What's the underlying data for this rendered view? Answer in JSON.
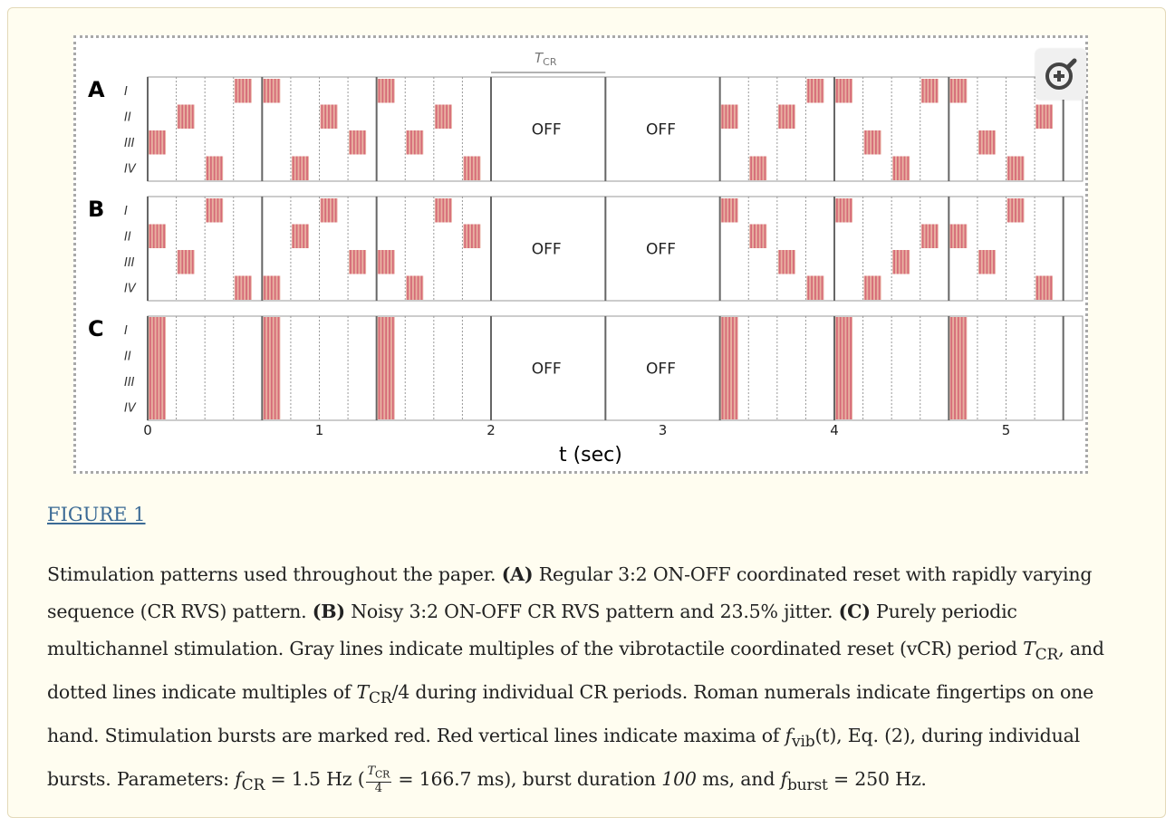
{
  "figure": {
    "tcr_label": "T",
    "tcr_sub": "CR",
    "panels": [
      "A",
      "B",
      "C"
    ],
    "fingers": [
      "I",
      "II",
      "III",
      "IV"
    ],
    "off_label": "OFF",
    "x_ticks": [
      "0",
      "1",
      "2",
      "3",
      "4",
      "5"
    ],
    "x_label": "t (sec)",
    "colors": {
      "burst": "#d66a78",
      "burst_light": "#e8b0a0",
      "grid": "#555555"
    }
  },
  "figure_link": "FIGURE 1",
  "caption": {
    "t1": "Stimulation patterns used throughout the paper. ",
    "b1": "(A)",
    "t2": " Regular 3:2 ON-OFF coordinated reset with rapidly varying sequence (CR RVS) pattern. ",
    "b2": "(B)",
    "t3": " Noisy 3:2 ON-OFF CR RVS pattern and 23.5% jitter. ",
    "b3": "(C)",
    "t4": " Purely periodic multichannel stimulation. Gray lines indicate multiples of the vibrotactile coordinated reset (vCR) period ",
    "tcr": "T",
    "tcr_sub": "CR",
    "t5": ", and dotted lines indicate multiples of ",
    "t6": "/4 during individual CR periods. Roman numerals indicate fingertips on one hand. Stimulation bursts are marked red. Red vertical lines indicate maxima of ",
    "fvib": "f",
    "fvib_sub": "vib",
    "fvib_arg": "(t)",
    "t7": ", Eq. (2), during individual bursts. Parameters: ",
    "fcr": "f",
    "fcr_sub": "CR",
    "t8": " = 1.5 Hz (",
    "frac_num": "T",
    "frac_num_sub": "CR",
    "frac_den": "4",
    "t9": " = 166.7 ms), burst duration ",
    "dur": "100",
    "t10": " ms, and ",
    "fb": "f",
    "fb_sub": "burst",
    "t11": " = 250 Hz."
  }
}
